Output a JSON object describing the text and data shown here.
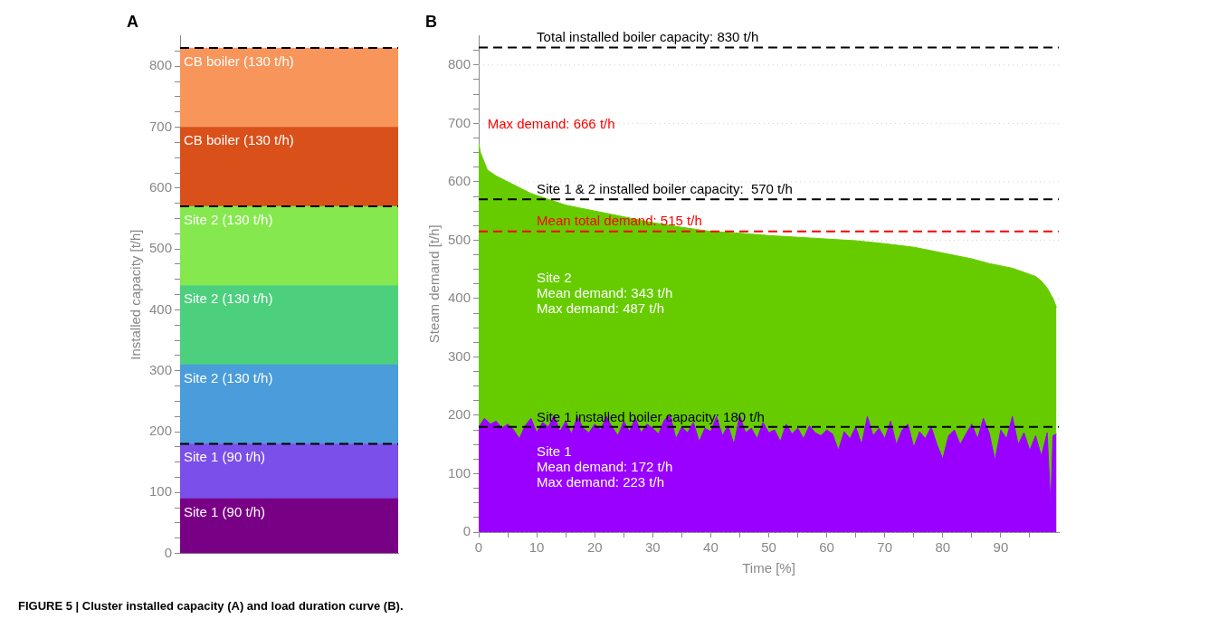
{
  "chart_data": [
    {
      "type": "bar",
      "title": "A",
      "ylabel": "Installed capacity [t/h]",
      "categories": [
        null
      ],
      "stacked": true,
      "data_labels": false,
      "series": [
        {
          "name": "Site 1 (90 t/h)",
          "color": "#780085",
          "values": [
            90
          ]
        },
        {
          "name": "Site 1 (90 t/h)",
          "color": "#7b4fe9",
          "values": [
            90
          ]
        },
        {
          "name": "Site 2 (130 t/h)",
          "color": "#4a9cdb",
          "values": [
            130
          ]
        },
        {
          "name": "Site 2 (130 t/h)",
          "color": "#4cd07d",
          "values": [
            130
          ]
        },
        {
          "name": "Site 2 (130 t/h)",
          "color": "#86e84f",
          "values": [
            130
          ]
        },
        {
          "name": "CB boiler (130 t/h)",
          "color": "#d9501a",
          "values": [
            130
          ]
        },
        {
          "name": "CB boiler (130 t/h)",
          "color": "#f8955a",
          "values": [
            130
          ]
        }
      ],
      "ylim": [
        0,
        850
      ],
      "yticks": [
        0,
        {
          "value": 25,
          "label": null
        },
        {
          "value": 50,
          "label": null
        },
        {
          "value": 75,
          "label": null
        },
        100,
        {
          "value": 125,
          "label": null
        },
        {
          "value": 150,
          "label": null
        },
        {
          "value": 175,
          "label": null
        },
        200,
        {
          "value": 225,
          "label": null
        },
        {
          "value": 250,
          "label": null
        },
        {
          "value": 275,
          "label": null
        },
        300,
        {
          "value": 325,
          "label": null
        },
        {
          "value": 350,
          "label": null
        },
        {
          "value": 375,
          "label": null
        },
        400,
        {
          "value": 425,
          "label": null
        },
        {
          "value": 450,
          "label": null
        },
        {
          "value": 475,
          "label": null
        },
        500,
        {
          "value": 525,
          "label": null
        },
        {
          "value": 550,
          "label": null
        },
        {
          "value": 575,
          "label": null
        },
        600,
        {
          "value": 625,
          "label": null
        },
        {
          "value": 650,
          "label": null
        },
        {
          "value": 675,
          "label": null
        },
        700,
        {
          "value": 725,
          "label": null
        },
        {
          "value": 750,
          "label": null
        },
        {
          "value": 775,
          "label": null
        },
        800,
        {
          "value": 825,
          "label": null
        }
      ],
      "ref_lines": [
        {
          "axis": "y",
          "value": 180,
          "color": "#000000",
          "line_style": "dashed"
        },
        {
          "axis": "y",
          "value": 570,
          "color": "#000000",
          "line_style": "dashed"
        },
        {
          "axis": "y",
          "value": 830,
          "color": "#000000",
          "line_style": "dashed"
        }
      ],
      "grid": false,
      "legend": false
    },
    {
      "type": "area",
      "title": "B",
      "xlabel": "Time [%]",
      "ylabel": "Steam demand [t/h]",
      "series": [
        {
          "color": "#66cc00",
          "x": [
            0,
            0.3,
            1.5,
            3,
            5,
            7,
            9,
            12,
            15,
            20,
            25,
            30,
            35,
            40,
            45,
            50,
            55,
            60,
            65,
            70,
            75,
            80,
            85,
            88,
            90,
            92,
            94,
            96,
            97,
            98,
            99,
            99.6
          ],
          "values": [
            666,
            650,
            620,
            610,
            600,
            590,
            580,
            570,
            560,
            550,
            540,
            530,
            522,
            515,
            512,
            508,
            505,
            502,
            499,
            494,
            488,
            478,
            468,
            460,
            456,
            452,
            445,
            438,
            430,
            418,
            400,
            385
          ]
        },
        {
          "color": "#9900ff",
          "x": [
            0,
            1,
            2,
            3,
            4,
            5,
            6,
            7,
            8,
            9,
            10,
            11,
            12,
            13,
            14,
            15,
            16,
            17,
            18,
            19,
            20,
            21,
            22,
            23,
            24,
            25,
            26,
            27,
            28,
            29,
            30,
            31,
            32,
            33,
            34,
            35,
            36,
            37,
            38,
            39,
            40,
            41,
            42,
            43,
            44,
            45,
            46,
            47,
            48,
            49,
            50,
            51,
            52,
            53,
            54,
            55,
            56,
            57,
            58,
            59,
            60,
            61,
            62,
            63,
            64,
            65,
            66,
            67,
            68,
            69,
            70,
            71,
            72,
            73,
            74,
            75,
            76,
            77,
            78,
            79,
            80,
            81,
            82,
            83,
            84,
            85,
            86,
            87,
            88,
            89,
            90,
            91,
            92,
            93,
            94,
            95,
            96,
            97,
            98,
            98.6,
            99,
            99.6
          ],
          "values": [
            180,
            195,
            185,
            190,
            178,
            185,
            175,
            160,
            182,
            195,
            170,
            188,
            180,
            200,
            172,
            190,
            168,
            198,
            178,
            170,
            185,
            175,
            198,
            180,
            165,
            190,
            172,
            195,
            170,
            185,
            178,
            168,
            192,
            200,
            160,
            180,
            170,
            188,
            155,
            178,
            172,
            198,
            165,
            182,
            150,
            200,
            170,
            178,
            160,
            188,
            170,
            175,
            155,
            185,
            168,
            178,
            160,
            182,
            170,
            165,
            175,
            168,
            140,
            172,
            160,
            180,
            150,
            198,
            165,
            178,
            160,
            190,
            150,
            175,
            185,
            145,
            172,
            160,
            180,
            150,
            125,
            165,
            175,
            150,
            168,
            185,
            160,
            195,
            170,
            123,
            175,
            160,
            198,
            150,
            170,
            140,
            165,
            130,
            170,
            45,
            165,
            168
          ]
        }
      ],
      "xlim": [
        0,
        100
      ],
      "xticks": [
        0,
        {
          "value": 5,
          "label": null
        },
        10,
        {
          "value": 15,
          "label": null
        },
        20,
        {
          "value": 25,
          "label": null
        },
        30,
        {
          "value": 35,
          "label": null
        },
        40,
        {
          "value": 45,
          "label": null
        },
        50,
        {
          "value": 55,
          "label": null
        },
        60,
        {
          "value": 65,
          "label": null
        },
        70,
        {
          "value": 75,
          "label": null
        },
        80,
        {
          "value": 85,
          "label": null
        },
        90,
        {
          "value": 95,
          "label": null
        }
      ],
      "ylim": [
        0,
        850
      ],
      "yticks": [
        0,
        {
          "value": 25,
          "label": null
        },
        {
          "value": 50,
          "label": null
        },
        {
          "value": 75,
          "label": null
        },
        100,
        {
          "value": 125,
          "label": null
        },
        {
          "value": 150,
          "label": null
        },
        {
          "value": 175,
          "label": null
        },
        200,
        {
          "value": 225,
          "label": null
        },
        {
          "value": 250,
          "label": null
        },
        {
          "value": 275,
          "label": null
        },
        300,
        {
          "value": 325,
          "label": null
        },
        {
          "value": 350,
          "label": null
        },
        {
          "value": 375,
          "label": null
        },
        400,
        {
          "value": 425,
          "label": null
        },
        {
          "value": 450,
          "label": null
        },
        {
          "value": 475,
          "label": null
        },
        500,
        {
          "value": 525,
          "label": null
        },
        {
          "value": 550,
          "label": null
        },
        {
          "value": 575,
          "label": null
        },
        600,
        {
          "value": 625,
          "label": null
        },
        {
          "value": 650,
          "label": null
        },
        {
          "value": 675,
          "label": null
        },
        700,
        {
          "value": 725,
          "label": null
        },
        {
          "value": 750,
          "label": null
        },
        {
          "value": 775,
          "label": null
        },
        800,
        {
          "value": 825,
          "label": null
        }
      ],
      "ref_lines": [
        {
          "axis": "y",
          "value": 830,
          "label": "Total installed boiler capacity: 830 t/h",
          "color": "#000000",
          "line_style": "dashed"
        },
        {
          "axis": "y",
          "value": 570,
          "label": "Site 1 & 2 installed boiler capacity:  570 t/h",
          "color": "#000000",
          "line_style": "dashed"
        },
        {
          "axis": "y",
          "value": 515,
          "label": "Mean total demand: 515 t/h",
          "color": "#ff0000",
          "line_style": "dashed"
        },
        {
          "axis": "y",
          "value": 180,
          "label": "Site 1 installed boiler capacity: 180 t/h",
          "color": "#000000",
          "line_style": "dashed"
        }
      ],
      "annotations": [
        "Max demand: 666 t/h",
        "Site 2\nMean demand: 343 t/h\nMax demand: 487 t/h",
        "Site 1\nMean demand: 172 t/h\nMax demand: 223 t/h",
        "FIGURE 5 | Cluster installed capacity (A) and load duration curve (B)."
      ],
      "grid": "y",
      "legend": false,
      "marker": "none",
      "line_style": "solid"
    }
  ]
}
